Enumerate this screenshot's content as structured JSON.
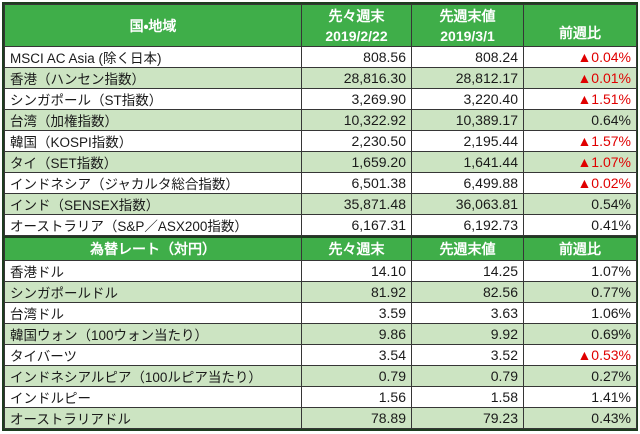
{
  "colors": {
    "header_green": "#3fae49",
    "row_alt_green": "#cce4c2",
    "negative_red": "#e00000",
    "frame_border": "#1e3c1f",
    "grid_border": "#363636",
    "text_dark": "#1a1a1a",
    "header_text": "#ffffff"
  },
  "icons": {
    "decline_marker": "▲"
  },
  "chart_data": [
    {
      "type": "table",
      "name": "asia_stock_indices",
      "header": {
        "region": "国・地域",
        "week_before_label": "先々週末",
        "week_before_date": "2019/2/22",
        "last_week_label": "先週末値",
        "last_week_date": "2019/3/1",
        "change_label": "前週比"
      },
      "rows": [
        {
          "name": "MSCI AC Asia (除く日本)",
          "prev2": "808.56",
          "prev": "808.24",
          "change": "▲0.04%",
          "negative": true
        },
        {
          "name": "香港（ハンセン指数）",
          "prev2": "28,816.30",
          "prev": "28,812.17",
          "change": "▲0.01%",
          "negative": true
        },
        {
          "name": "シンガポール（ST指数）",
          "prev2": "3,269.90",
          "prev": "3,220.40",
          "change": "▲1.51%",
          "negative": true
        },
        {
          "name": "台湾（加権指数）",
          "prev2": "10,322.92",
          "prev": "10,389.17",
          "change": "0.64%",
          "negative": false
        },
        {
          "name": "韓国（KOSPI指数）",
          "prev2": "2,230.50",
          "prev": "2,195.44",
          "change": "▲1.57%",
          "negative": true
        },
        {
          "name": "タイ（SET指数）",
          "prev2": "1,659.20",
          "prev": "1,641.44",
          "change": "▲1.07%",
          "negative": true
        },
        {
          "name": "インドネシア（ジャカルタ総合指数）",
          "prev2": "6,501.38",
          "prev": "6,499.88",
          "change": "▲0.02%",
          "negative": true
        },
        {
          "name": "インド（SENSEX指数）",
          "prev2": "35,871.48",
          "prev": "36,063.81",
          "change": "0.54%",
          "negative": false
        },
        {
          "name": "オーストラリア（S&P／ASX200指数）",
          "prev2": "6,167.31",
          "prev": "6,192.73",
          "change": "0.41%",
          "negative": false
        }
      ]
    },
    {
      "type": "table",
      "name": "fx_rates_vs_yen",
      "header": {
        "title": "為替レート（対円）",
        "week_before_label": "先々週末",
        "last_week_label": "先週末値",
        "change_label": "前週比"
      },
      "rows": [
        {
          "name": "香港ドル",
          "prev2": "14.10",
          "prev": "14.25",
          "change": "1.07%",
          "negative": false
        },
        {
          "name": "シンガポールドル",
          "prev2": "81.92",
          "prev": "82.56",
          "change": "0.77%",
          "negative": false
        },
        {
          "name": "台湾ドル",
          "prev2": "3.59",
          "prev": "3.63",
          "change": "1.06%",
          "negative": false
        },
        {
          "name": "韓国ウォン（100ウォン当たり）",
          "prev2": "9.86",
          "prev": "9.92",
          "change": "0.69%",
          "negative": false
        },
        {
          "name": "タイバーツ",
          "prev2": "3.54",
          "prev": "3.52",
          "change": "▲0.53%",
          "negative": true
        },
        {
          "name": "インドネシアルピア（100ルピア当たり）",
          "prev2": "0.79",
          "prev": "0.79",
          "change": "0.27%",
          "negative": false
        },
        {
          "name": "インドルピー",
          "prev2": "1.56",
          "prev": "1.58",
          "change": "1.41%",
          "negative": false
        },
        {
          "name": "オーストラリアドル",
          "prev2": "78.89",
          "prev": "79.23",
          "change": "0.43%",
          "negative": false
        }
      ]
    }
  ]
}
